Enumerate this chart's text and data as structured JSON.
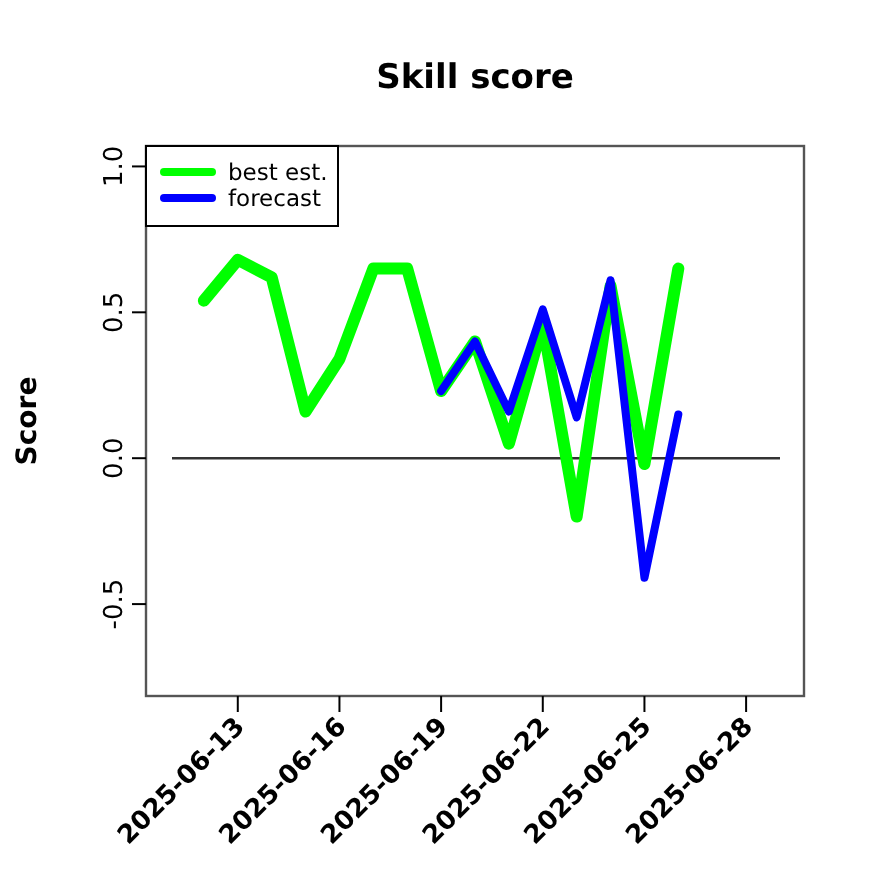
{
  "chart_data": {
    "type": "line",
    "title": "Skill score",
    "ylabel": "Score",
    "xlim": [
      "2025-06-10T07:00",
      "2025-06-29T17:00"
    ],
    "xticks": [
      "2025-06-13",
      "2025-06-16",
      "2025-06-19",
      "2025-06-22",
      "2025-06-25",
      "2025-06-28"
    ],
    "ylim": [
      -0.815,
      1.07
    ],
    "yticks": [
      -0.5,
      {
        "value": 0,
        "label": "0.0"
      },
      0.5,
      {
        "value": 1,
        "label": "1.0"
      }
    ],
    "legend": "top left",
    "line_style": "solid",
    "marker": "none",
    "ref_lines": [
      {
        "axis": "y",
        "value": 0,
        "color": "#333333"
      }
    ],
    "series": [
      {
        "name": "best est.",
        "color": "#00ff00",
        "x": [
          "2025-06-12",
          "2025-06-13",
          "2025-06-14",
          "2025-06-15",
          "2025-06-16",
          "2025-06-17",
          "2025-06-18",
          "2025-06-19",
          "2025-06-20",
          "2025-06-21",
          "2025-06-22",
          "2025-06-23",
          "2025-06-24",
          "2025-06-25",
          "2025-06-26"
        ],
        "values": [
          0.54,
          0.68,
          0.62,
          0.16,
          0.34,
          0.65,
          0.65,
          0.23,
          0.4,
          0.05,
          0.46,
          -0.2,
          0.59,
          -0.02,
          0.65
        ]
      },
      {
        "name": "forecast",
        "color": "#0000ff",
        "x": [
          "2025-06-19",
          "2025-06-20",
          "2025-06-21",
          "2025-06-22",
          "2025-06-23",
          "2025-06-24",
          "2025-06-25",
          "2025-06-26"
        ],
        "values": [
          0.23,
          0.4,
          0.16,
          0.51,
          0.14,
          0.61,
          -0.41,
          0.15
        ]
      }
    ]
  }
}
